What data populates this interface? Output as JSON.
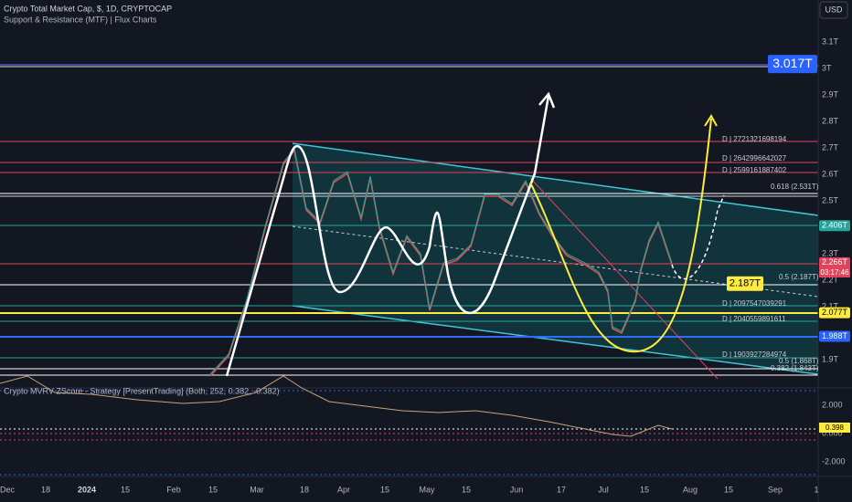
{
  "header": {
    "title": "Crypto Total Market Cap, $, 1D, CRYPTOCAP",
    "indicator": "Support & Resistance (MTF) | Flux Charts",
    "currency": "USD"
  },
  "price_axis": [
    {
      "value": 3.1,
      "label": "3.1T"
    },
    {
      "value": 3.0,
      "label": "3T"
    },
    {
      "value": 2.9,
      "label": "2.9T"
    },
    {
      "value": 2.8,
      "label": "2.8T"
    },
    {
      "value": 2.7,
      "label": "2.7T"
    },
    {
      "value": 2.6,
      "label": "2.6T"
    },
    {
      "value": 2.5,
      "label": "2.5T"
    },
    {
      "value": 2.3,
      "label": "2.3T"
    },
    {
      "value": 2.2,
      "label": "2.2T"
    },
    {
      "value": 2.1,
      "label": "2.1T"
    },
    {
      "value": 1.9,
      "label": "1.9T"
    }
  ],
  "price_tags": [
    {
      "value": 3.017,
      "label": "3.017T"
    },
    {
      "value": 2.406,
      "label": "2.406T"
    },
    {
      "value": 2.266,
      "label": "2.266T"
    },
    {
      "value": 2.187,
      "label": "2.187T"
    },
    {
      "value": 2.077,
      "label": "2.077T"
    },
    {
      "value": 1.988,
      "label": "1.988T"
    }
  ],
  "countdown": "03:17:46",
  "level_labels": [
    "D | 2721321698194",
    "D | 2642996642027",
    "D | 2599161887402",
    "0.618 (2.531T)",
    "0.5 (2.187T)",
    "D | 2097547039291",
    "D | 2040559891611",
    "D | 1903927284974",
    "0.5 (1.868T)",
    "0.382 (1.843T)"
  ],
  "indicator_pane": {
    "title": "Crypto MVRV ZScore - Strategy [PresentTrading] (Both, 252, 0.382, -0.382)",
    "axis": [
      "2.000",
      "0.000",
      "-2.000"
    ],
    "value_tag": "0.398"
  },
  "time_axis": [
    "Dec",
    "18",
    "2024",
    "15",
    "Feb",
    "15",
    "Mar",
    "18",
    "Apr",
    "15",
    "May",
    "15",
    "Jun",
    "17",
    "Jul",
    "15",
    "Aug",
    "15",
    "Sep",
    "1"
  ]
}
